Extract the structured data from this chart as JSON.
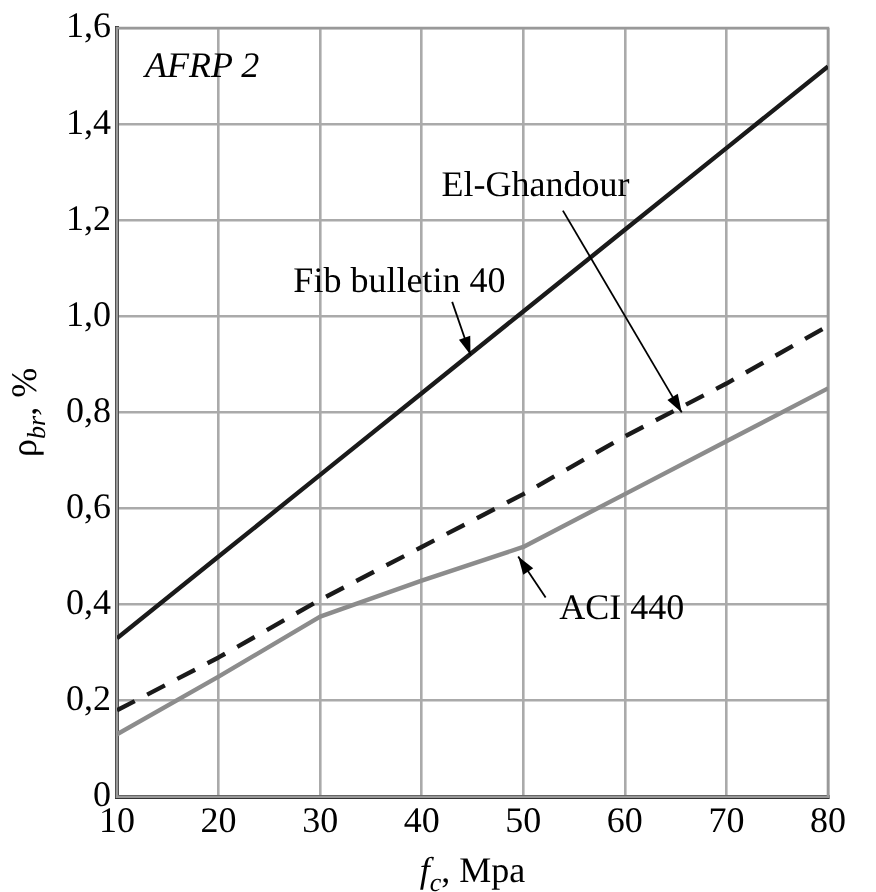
{
  "chart_data": {
    "type": "line",
    "xlabel": "f$_{c}$, Mpa",
    "ylabel": "ρ$_{br}$, %",
    "annotations": [
      "AFRP 2"
    ],
    "x": [
      10,
      20,
      30,
      40,
      50,
      60,
      70,
      80
    ],
    "series": [
      {
        "name": "Fib bulletin 40",
        "color": "#1a1a1a",
        "line_style": "solid",
        "values": [
          0.33,
          0.5,
          0.67,
          0.84,
          1.01,
          1.18,
          1.35,
          1.52
        ]
      },
      {
        "name": "El-Ghandour",
        "color": "#1a1a1a",
        "line_style": "dashed",
        "values": [
          0.18,
          0.29,
          0.41,
          0.52,
          0.63,
          0.75,
          0.86,
          0.98
        ]
      },
      {
        "name": "ACI 440",
        "color": "#8c8c8c",
        "line_style": "solid",
        "values": [
          0.13,
          0.25,
          0.375,
          0.45,
          0.52,
          0.63,
          0.74,
          0.85
        ]
      }
    ],
    "xlim": [
      10,
      80
    ],
    "xticks": [
      10,
      20,
      30,
      40,
      50,
      60,
      70,
      80
    ],
    "ylim": [
      0,
      1.6
    ],
    "yticks": [
      {
        "value": 0,
        "label": "0"
      },
      {
        "value": 0.2,
        "label": "0,2"
      },
      {
        "value": 0.4,
        "label": "0,4"
      },
      {
        "value": 0.6,
        "label": "0,6"
      },
      {
        "value": 0.8,
        "label": "0,8"
      },
      {
        "value": 1.0,
        "label": "1,0"
      },
      {
        "value": 1.2,
        "label": "1,2"
      },
      {
        "value": 1.4,
        "label": "1,4"
      },
      {
        "value": 1.6,
        "label": "1,6"
      }
    ],
    "grid": true,
    "legend": false,
    "marker": "none"
  }
}
